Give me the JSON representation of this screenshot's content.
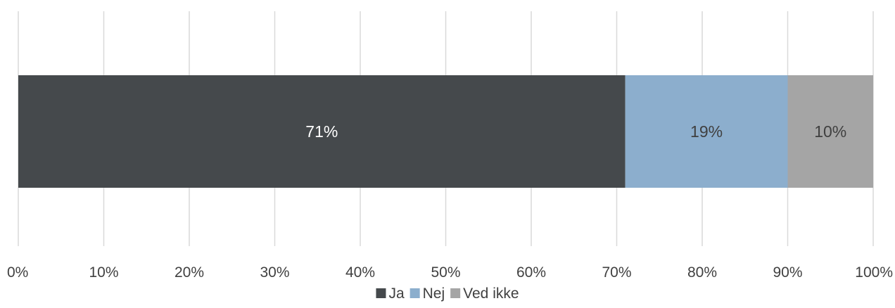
{
  "chart_data": {
    "type": "bar",
    "orientation": "horizontal",
    "stacked": true,
    "title": "",
    "xlabel": "",
    "ylabel": "",
    "categories": [
      ""
    ],
    "series": [
      {
        "name": "Ja",
        "values": [
          71
        ],
        "color": "#45494c",
        "label": "71%",
        "label_color": "#ffffff"
      },
      {
        "name": "Nej",
        "values": [
          19
        ],
        "color": "#8caecd",
        "label": "19%",
        "label_color": "#404040"
      },
      {
        "name": "Ved ikke",
        "values": [
          10
        ],
        "color": "#a5a5a5",
        "label": "10%",
        "label_color": "#404040"
      }
    ],
    "xlim": [
      0,
      100
    ],
    "x_ticks": [
      0,
      10,
      20,
      30,
      40,
      50,
      60,
      70,
      80,
      90,
      100
    ],
    "x_tick_labels": [
      "0%",
      "10%",
      "20%",
      "30%",
      "40%",
      "50%",
      "60%",
      "70%",
      "80%",
      "90%",
      "100%"
    ],
    "grid": true,
    "legend": "bottom"
  }
}
